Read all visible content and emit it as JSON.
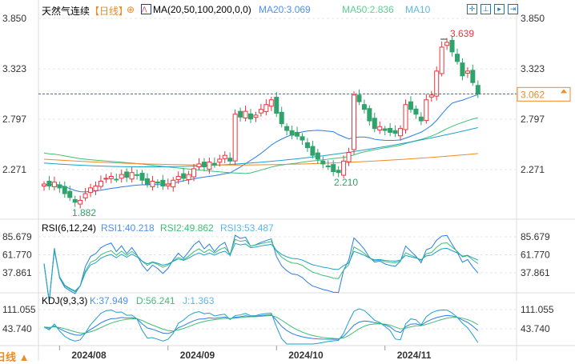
{
  "header": {
    "title": "天然气连续",
    "period": "【日线】",
    "indicator": "MA(20,50,100,200,0,0)",
    "ma20": "MA20:3.069",
    "ma50": "MA50:2.836",
    "ma10": "MA10"
  },
  "rsi": {
    "title": "RSI(6,12,24)",
    "r1": "RSI1:40.218",
    "r2": "RSI2:49.862",
    "r3": "RSI3:53.487"
  },
  "kdj": {
    "title": "KDJ(9,3,3)",
    "k": "K:37.949",
    "d": "D:56.241",
    "j": "J:1.363"
  },
  "bottom_label": "日线 ▲",
  "toolbar": [
    "crosshair-icon",
    "zoom-icon",
    "fit-icon",
    "export-icon"
  ],
  "colors": {
    "up": "#e8363c",
    "down": "#2ea36b",
    "ma20": "#2a7de1",
    "ma50": "#3cbf76",
    "ma100": "#1fa0c8",
    "ma200": "#f08a24"
  },
  "chart_data": {
    "type": "candlestick",
    "price_ticks": [
      "3.850",
      "3.323",
      "2.797",
      "2.271"
    ],
    "price_range": [
      1.8,
      3.85
    ],
    "last_price": "3.062",
    "annotations": {
      "high": "3.639",
      "mid_low": "2.210",
      "low": "1.882"
    },
    "rsi_ticks": [
      "85.679",
      "61.770",
      "37.861"
    ],
    "kdj_ticks": [
      "111.055",
      "43.740"
    ],
    "x_labels": [
      {
        "label": "2024/08",
        "index": 3
      },
      {
        "label": "2024/09",
        "index": 24
      },
      {
        "label": "2024/10",
        "index": 45
      },
      {
        "label": "2024/11",
        "index": 66
      }
    ],
    "closes": [
      2.12,
      2.1,
      2.14,
      2.08,
      2.02,
      1.98,
      1.93,
      1.95,
      2.02,
      2.08,
      2.1,
      2.15,
      2.18,
      2.2,
      2.17,
      2.22,
      2.19,
      2.24,
      2.21,
      2.16,
      2.12,
      2.15,
      2.13,
      2.1,
      2.12,
      2.16,
      2.2,
      2.18,
      2.22,
      2.28,
      2.33,
      2.3,
      2.35,
      2.32,
      2.38,
      2.42,
      2.36,
      2.85,
      2.82,
      2.88,
      2.8,
      2.84,
      2.9,
      2.95,
      3.0,
      2.86,
      2.75,
      2.68,
      2.63,
      2.62,
      2.58,
      2.5,
      2.42,
      2.38,
      2.33,
      2.3,
      2.25,
      2.24,
      2.36,
      2.45,
      3.05,
      2.98,
      2.9,
      2.78,
      2.7,
      2.72,
      2.68,
      2.66,
      2.65,
      2.7,
      2.95,
      2.9,
      2.85,
      2.78,
      3.0,
      3.05,
      3.3,
      3.55,
      3.6,
      3.5,
      3.4,
      3.25,
      3.3,
      3.18,
      3.062
    ]
  }
}
